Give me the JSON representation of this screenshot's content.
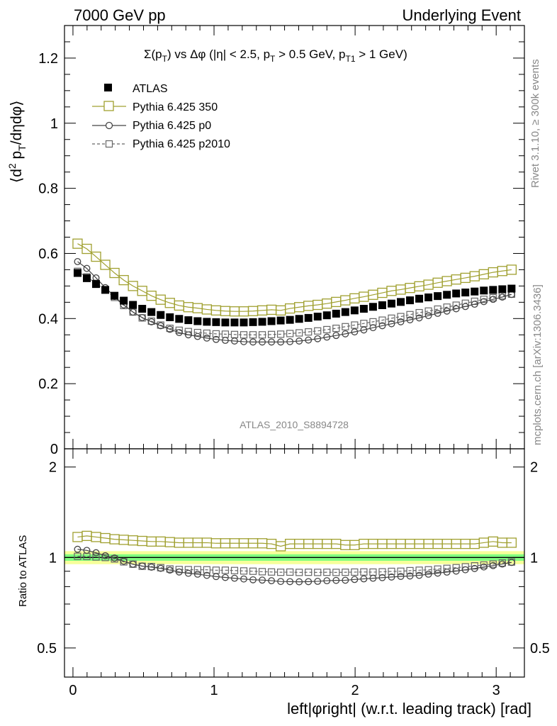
{
  "header": {
    "left": "7000 GeV pp",
    "right": "Underlying Event"
  },
  "side_labels": {
    "rivet": "Rivet 3.1.10, ≥ 300k events",
    "mcplots": "mcplots.cern.ch [arXiv:1306.3436]"
  },
  "watermark": "ATLAS_2010_S8894728",
  "chart_data": {
    "type": "scatter",
    "title": "Σ(pT) vs Δφ (|η| < 2.5, pT > 0.5 GeV, pT1 > 1 GeV)",
    "title_parts": {
      "sigma": "Σ(p",
      "t1": "T",
      "vs": ") vs Δφ (|η| < 2.5, p",
      "t2": "T",
      "gt": " > 0.5 GeV, p",
      "t3": "T1",
      "end": " > 1 GeV)"
    },
    "ylabel_parts": {
      "open": "⟨d",
      "sq": "2",
      "mid": " p",
      "sub": "T",
      "end": "/dηdφ⟩"
    },
    "xlabel": "left|φright| (w.r.t. leading track) [rad]",
    "ratio_ylabel": "Ratio to ATLAS",
    "xlim": [
      -0.06,
      3.2
    ],
    "ylim_main": [
      0,
      1.3
    ],
    "ylim_ratio": [
      0.4,
      2.3
    ],
    "main_yticks": [
      "0",
      "0.2",
      "0.4",
      "0.6",
      "0.8",
      "1",
      "1.2"
    ],
    "ratio_yticks": [
      "0.5",
      "1",
      "2"
    ],
    "xticks": [
      "0",
      "1",
      "2",
      "3"
    ],
    "legend_position": "top-left",
    "colors": {
      "data": "#000000",
      "p350": "#a0a030",
      "p0": "#444444",
      "p2010": "#666666",
      "band_green": "#80ff80",
      "band_yellow": "#f6ff9a"
    },
    "x": [
      0.0327,
      0.0982,
      0.1636,
      0.2291,
      0.2945,
      0.36,
      0.4254,
      0.4909,
      0.5563,
      0.6218,
      0.6872,
      0.7527,
      0.8181,
      0.8836,
      0.949,
      1.0145,
      1.0799,
      1.1454,
      1.2108,
      1.2763,
      1.3417,
      1.4072,
      1.4726,
      1.5381,
      1.6035,
      1.669,
      1.7344,
      1.7999,
      1.8653,
      1.9308,
      1.9962,
      2.0617,
      2.1271,
      2.1926,
      2.258,
      2.3235,
      2.3889,
      2.4544,
      2.5198,
      2.5853,
      2.6507,
      2.7162,
      2.7816,
      2.8471,
      2.9125,
      2.978,
      3.0434,
      3.1089
    ],
    "series": [
      {
        "name": "ATLAS",
        "marker": "filled-square",
        "values": [
          0.54,
          0.524,
          0.506,
          0.488,
          0.47,
          0.455,
          0.442,
          0.43,
          0.42,
          0.411,
          0.404,
          0.399,
          0.395,
          0.392,
          0.39,
          0.389,
          0.388,
          0.388,
          0.388,
          0.389,
          0.39,
          0.392,
          0.394,
          0.396,
          0.399,
          0.402,
          0.406,
          0.41,
          0.415,
          0.42,
          0.425,
          0.43,
          0.436,
          0.441,
          0.446,
          0.451,
          0.456,
          0.461,
          0.465,
          0.469,
          0.473,
          0.477,
          0.48,
          0.483,
          0.486,
          0.488,
          0.49,
          0.492
        ]
      },
      {
        "name": "Pythia 6.425 350",
        "marker": "open-square",
        "values": [
          0.63,
          0.614,
          0.59,
          0.565,
          0.54,
          0.518,
          0.5,
          0.485,
          0.47,
          0.458,
          0.448,
          0.44,
          0.435,
          0.432,
          0.428,
          0.425,
          0.423,
          0.422,
          0.422,
          0.423,
          0.425,
          0.427,
          0.425,
          0.431,
          0.435,
          0.439,
          0.442,
          0.446,
          0.451,
          0.456,
          0.462,
          0.467,
          0.473,
          0.479,
          0.485,
          0.489,
          0.494,
          0.499,
          0.504,
          0.51,
          0.515,
          0.52,
          0.525,
          0.53,
          0.536,
          0.542,
          0.546,
          0.55
        ],
        "ratio": [
          1.17,
          1.18,
          1.17,
          1.16,
          1.15,
          1.145,
          1.14,
          1.135,
          1.13,
          1.13,
          1.125,
          1.12,
          1.12,
          1.12,
          1.12,
          1.115,
          1.115,
          1.115,
          1.115,
          1.115,
          1.115,
          1.11,
          1.09,
          1.11,
          1.11,
          1.11,
          1.11,
          1.11,
          1.11,
          1.1,
          1.1,
          1.11,
          1.11,
          1.11,
          1.11,
          1.11,
          1.11,
          1.11,
          1.11,
          1.11,
          1.11,
          1.11,
          1.11,
          1.11,
          1.12,
          1.13,
          1.12,
          1.12
        ]
      },
      {
        "name": "Pythia 6.425 p0",
        "marker": "open-circle",
        "values": [
          0.575,
          0.554,
          0.525,
          0.495,
          0.468,
          0.442,
          0.42,
          0.403,
          0.39,
          0.378,
          0.367,
          0.357,
          0.35,
          0.345,
          0.34,
          0.336,
          0.333,
          0.331,
          0.329,
          0.328,
          0.328,
          0.328,
          0.328,
          0.329,
          0.331,
          0.334,
          0.338,
          0.343,
          0.348,
          0.353,
          0.359,
          0.365,
          0.372,
          0.378,
          0.384,
          0.39,
          0.396,
          0.402,
          0.409,
          0.416,
          0.423,
          0.43,
          0.437,
          0.444,
          0.452,
          0.459,
          0.466,
          0.474
        ],
        "ratio": [
          1.065,
          1.056,
          1.037,
          1.014,
          0.996,
          0.972,
          0.95,
          0.937,
          0.929,
          0.92,
          0.908,
          0.895,
          0.886,
          0.88,
          0.872,
          0.864,
          0.858,
          0.853,
          0.848,
          0.843,
          0.841,
          0.837,
          0.832,
          0.831,
          0.83,
          0.831,
          0.833,
          0.837,
          0.839,
          0.84,
          0.845,
          0.849,
          0.853,
          0.857,
          0.861,
          0.865,
          0.868,
          0.872,
          0.88,
          0.887,
          0.894,
          0.901,
          0.91,
          0.919,
          0.93,
          0.94,
          0.951,
          0.963
        ]
      },
      {
        "name": "Pythia 6.425 p2010",
        "marker": "open-square-dashed",
        "values": [
          0.545,
          0.528,
          0.508,
          0.488,
          0.465,
          0.44,
          0.42,
          0.402,
          0.392,
          0.38,
          0.37,
          0.364,
          0.36,
          0.357,
          0.355,
          0.353,
          0.352,
          0.351,
          0.35,
          0.35,
          0.35,
          0.351,
          0.352,
          0.354,
          0.356,
          0.359,
          0.362,
          0.366,
          0.37,
          0.375,
          0.38,
          0.385,
          0.39,
          0.395,
          0.401,
          0.406,
          0.412,
          0.418,
          0.423,
          0.429,
          0.435,
          0.441,
          0.447,
          0.453,
          0.459,
          0.464,
          0.47,
          0.475
        ],
        "ratio": [
          1.009,
          1.008,
          1.004,
          1.0,
          0.989,
          0.967,
          0.95,
          0.935,
          0.933,
          0.925,
          0.916,
          0.912,
          0.911,
          0.911,
          0.91,
          0.907,
          0.907,
          0.905,
          0.902,
          0.9,
          0.897,
          0.895,
          0.893,
          0.894,
          0.892,
          0.893,
          0.892,
          0.893,
          0.892,
          0.893,
          0.894,
          0.895,
          0.894,
          0.896,
          0.899,
          0.9,
          0.904,
          0.907,
          0.91,
          0.915,
          0.92,
          0.925,
          0.931,
          0.938,
          0.944,
          0.951,
          0.959,
          0.966
        ]
      }
    ]
  }
}
